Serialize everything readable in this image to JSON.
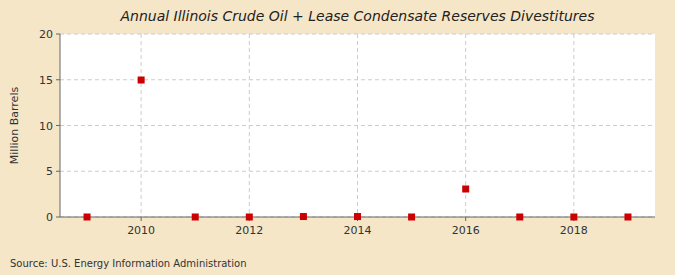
{
  "chart_data": {
    "type": "scatter",
    "title": "Annual Illinois Crude Oil + Lease Condensate Reserves Divestitures",
    "ylabel": "Million Barrels",
    "annotation": "Source: U.S. Energy Information Administration",
    "x": [
      2009,
      2010,
      2011,
      2012,
      2013,
      2014,
      2015,
      2016,
      2017,
      2018,
      2019
    ],
    "values": [
      0.0,
      14.97,
      0.0,
      0.0,
      0.05,
      0.05,
      0.0,
      3.06,
      0.0,
      0.0,
      0.0
    ],
    "color": "#cc0000",
    "marker": "square",
    "xlim": [
      2008.5,
      2019.5
    ],
    "ylim": [
      0,
      20
    ],
    "xticks": [
      2010,
      2012,
      2014,
      2016,
      2018
    ],
    "yticks": [
      0,
      5,
      10,
      15,
      20
    ],
    "grid": true
  }
}
